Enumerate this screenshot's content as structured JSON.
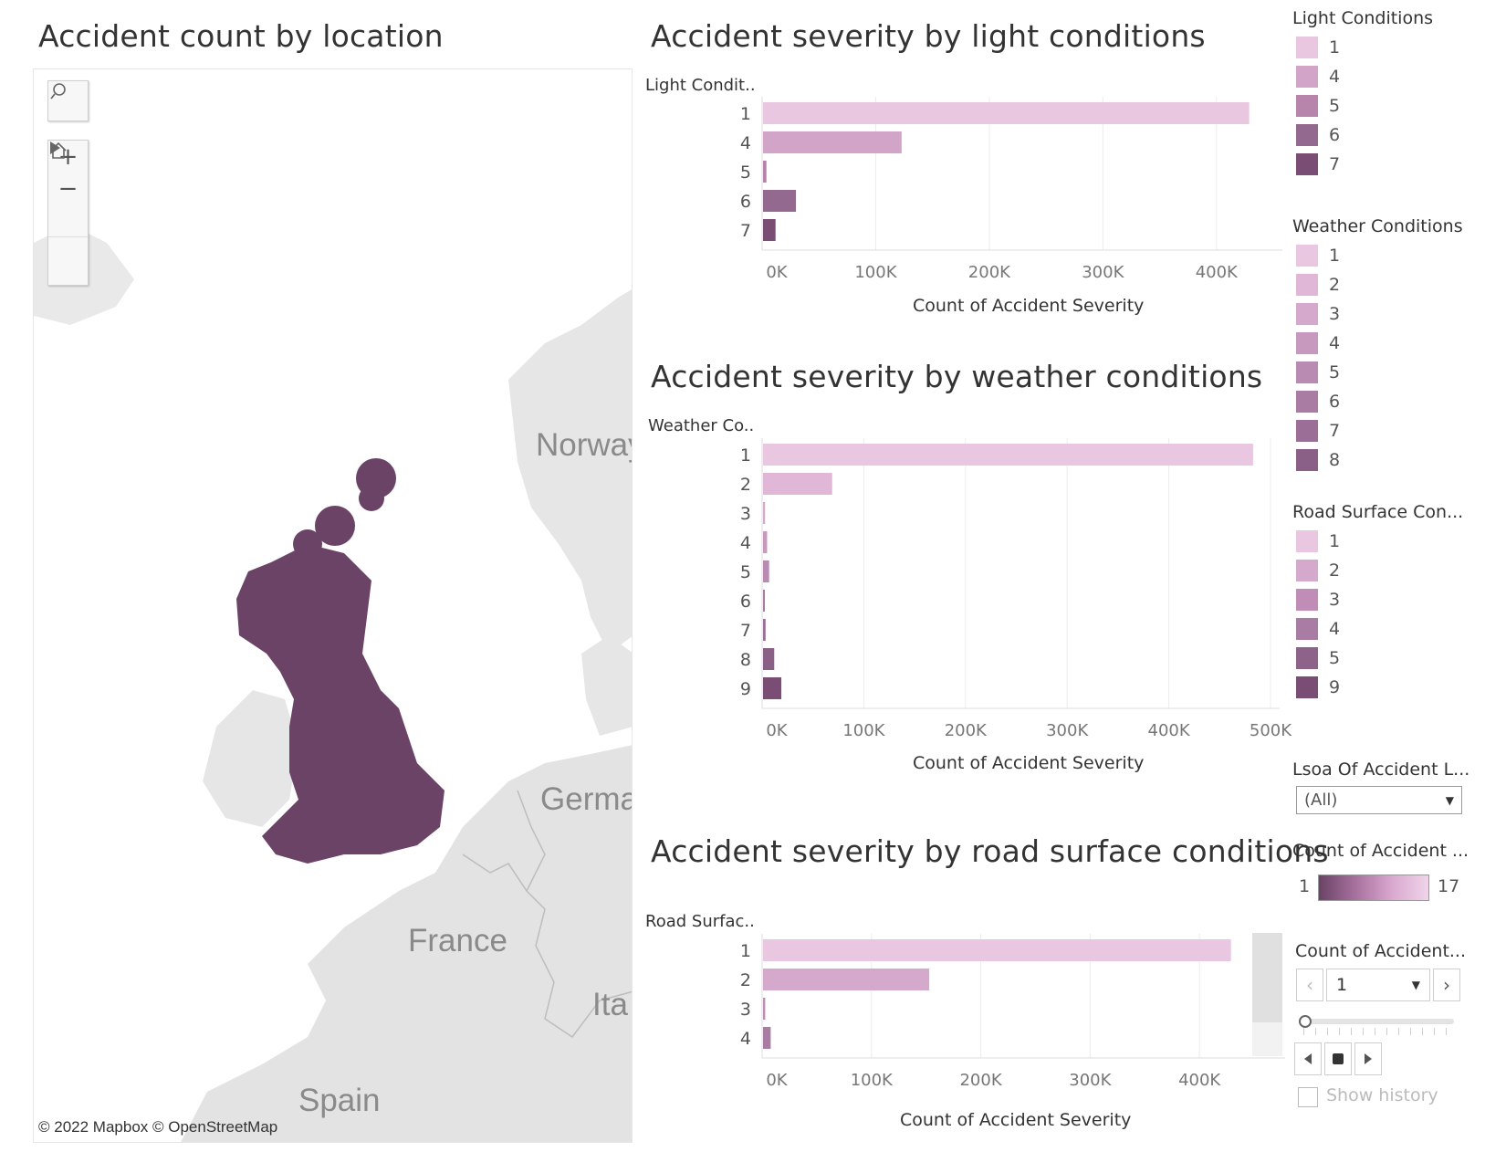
{
  "titles": {
    "map": "Accident count by location",
    "light": "Accident severity by light conditions",
    "weather": "Accident severity by weather conditions",
    "road": "Accident severity by road surface conditions"
  },
  "map": {
    "search_icon": "search-icon",
    "zoom_in": "+",
    "zoom_out": "−",
    "credit": "© 2022 Mapbox  © OpenStreetMap",
    "labels": {
      "norway": "Norway",
      "germany": "Germa",
      "france": "France",
      "italy": "Ita",
      "spain": "Spain"
    },
    "point_color": "#6b4366"
  },
  "charts": {
    "light": {
      "dim_header": "Light Condit..",
      "axis_title": "Count of Accident Severity",
      "ticks": [
        "0K",
        "100K",
        "200K",
        "300K",
        "400K"
      ]
    },
    "weather": {
      "dim_header": "Weather Co..",
      "axis_title": "Count of Accident Severity",
      "ticks": [
        "0K",
        "100K",
        "200K",
        "300K",
        "400K",
        "500K"
      ]
    },
    "road": {
      "dim_header": "Road Surfac..",
      "axis_title": "Count of Accident Severity",
      "ticks": [
        "0K",
        "100K",
        "200K",
        "300K",
        "400K"
      ]
    }
  },
  "chart_data": [
    {
      "type": "bar",
      "title": "Accident severity by light conditions",
      "orientation": "horizontal",
      "categories": [
        "1",
        "4",
        "5",
        "6",
        "7"
      ],
      "values": [
        428000,
        122000,
        3000,
        29000,
        11000
      ],
      "colors": [
        "#eac7e1",
        "#d2a4c7",
        "#b784ac",
        "#946990",
        "#7a4d74"
      ],
      "xlabel": "Count of Accident Severity",
      "ylabel": "Light Condit..",
      "xlim": [
        0,
        450000
      ]
    },
    {
      "type": "bar",
      "title": "Accident severity by weather conditions",
      "orientation": "horizontal",
      "categories": [
        "1",
        "2",
        "3",
        "4",
        "5",
        "6",
        "7",
        "8",
        "9"
      ],
      "values": [
        482000,
        68000,
        2000,
        4000,
        6000,
        1500,
        2500,
        11000,
        18000
      ],
      "colors": [
        "#eac7e1",
        "#e1b7d8",
        "#d5a9cc",
        "#c899bf",
        "#b98bb2",
        "#a97ca4",
        "#9a6e96",
        "#8a6086",
        "#7a4d74"
      ],
      "xlabel": "Count of Accident Severity",
      "ylabel": "Weather Co..",
      "xlim": [
        0,
        500000
      ]
    },
    {
      "type": "bar",
      "title": "Accident severity by road surface conditions",
      "orientation": "horizontal",
      "categories": [
        "1",
        "2",
        "3",
        "4"
      ],
      "values": [
        428000,
        152000,
        2000,
        7000
      ],
      "colors": [
        "#eac7e1",
        "#d5a9cc",
        "#bf8db6",
        "#a97ca4"
      ],
      "xlabel": "Count of Accident Severity",
      "ylabel": "Road Surfac..",
      "xlim": [
        0,
        470000
      ]
    }
  ],
  "legends": {
    "light": {
      "title": "Light Conditions",
      "items": [
        "1",
        "4",
        "5",
        "6",
        "7"
      ],
      "colors": [
        "#eac7e1",
        "#d2a4c7",
        "#b784ac",
        "#946990",
        "#7a4d74"
      ]
    },
    "weather": {
      "title": "Weather Conditions",
      "items": [
        "1",
        "2",
        "3",
        "4",
        "5",
        "6",
        "7",
        "8"
      ],
      "colors": [
        "#eac7e1",
        "#e1b7d8",
        "#d5a9cc",
        "#c899bf",
        "#b98bb2",
        "#a97ca4",
        "#9a6e96",
        "#8a6086"
      ]
    },
    "road": {
      "title": "Road Surface Con...",
      "items": [
        "1",
        "2",
        "3",
        "4",
        "5",
        "9"
      ],
      "colors": [
        "#eac7e1",
        "#d5a9cc",
        "#bf8db6",
        "#a97ca4",
        "#8e6389",
        "#7a4d74"
      ]
    }
  },
  "filters": {
    "lsoa_title": "Lsoa Of Accident L...",
    "lsoa_value": "(All)",
    "count_legend_title": "Count of Accident ...",
    "count_min": "1",
    "count_max": "17",
    "page_title": "Count of Accident...",
    "page_value": "1",
    "show_history": "Show history"
  }
}
